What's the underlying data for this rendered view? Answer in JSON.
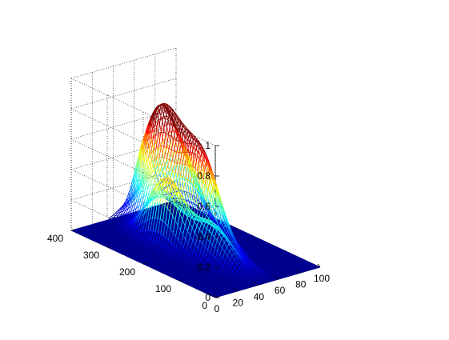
{
  "chart_data": {
    "type": "mesh3d",
    "title": "",
    "xlabel": "",
    "ylabel": "",
    "zlabel": "",
    "x_ticks": [
      0,
      20,
      40,
      60,
      80,
      100
    ],
    "y_ticks": [
      0,
      100,
      200,
      300,
      400
    ],
    "z_ticks": [
      0,
      0.2,
      0.4,
      0.6,
      0.8,
      1
    ],
    "x_tick_labels": [
      "0",
      "20",
      "40",
      "60",
      "80",
      "100"
    ],
    "y_tick_labels": [
      "0",
      "100",
      "200",
      "300",
      "400"
    ],
    "z_tick_labels": [
      "0",
      "0.2",
      "0.4",
      "0.6",
      "0.8",
      "1"
    ],
    "xlim": [
      0,
      100
    ],
    "ylim": [
      0,
      400
    ],
    "zlim": [
      0,
      1
    ],
    "grid": true,
    "colormap": "jet",
    "floor_value": 0,
    "surface_peaks": [
      {
        "x": 47,
        "y": 300,
        "z": 0.32
      },
      {
        "x": 33,
        "y": 230,
        "z": 0.45
      },
      {
        "x": 60,
        "y": 320,
        "z": 0.6
      },
      {
        "x": 70,
        "y": 360,
        "z": 0.55
      },
      {
        "x": 55,
        "y": 200,
        "z": 0.5
      },
      {
        "x": 65,
        "y": 230,
        "z": 0.4
      },
      {
        "x": 80,
        "y": 330,
        "z": 0.4
      },
      {
        "x": 40,
        "y": 120,
        "z": 0.25
      },
      {
        "x": 52,
        "y": 80,
        "z": 0.05
      }
    ]
  }
}
